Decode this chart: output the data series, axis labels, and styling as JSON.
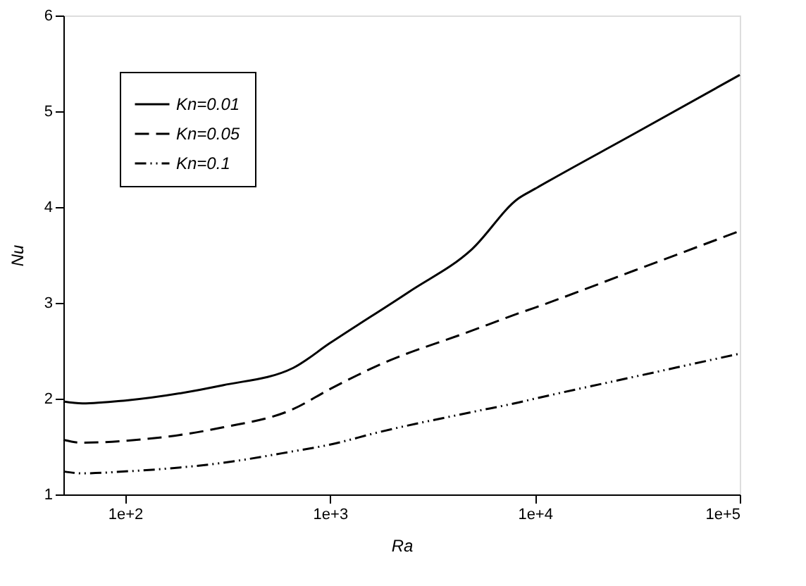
{
  "chart_data": {
    "type": "line",
    "xlabel": "Ra",
    "ylabel": "Nu",
    "log": "x",
    "xlim": [
      50,
      100000
    ],
    "xticks": [
      {
        "value": 100,
        "label": "1e+2"
      },
      {
        "value": 1000,
        "label": "1e+3"
      },
      {
        "value": 10000,
        "label": "1e+4"
      },
      {
        "value": 100000,
        "label": "1e+5"
      }
    ],
    "ylim": [
      1,
      6
    ],
    "yticks": [
      1,
      2,
      3,
      4,
      5,
      6
    ],
    "grid": false,
    "legend": "top left",
    "marker": "none",
    "x": [
      50,
      62,
      100,
      300,
      660,
      1000,
      2450,
      4930,
      8310,
      10000,
      30800,
      100000
    ],
    "series": [
      {
        "name": "Kn=0.01",
        "color": "#000000",
        "line_style": "solid",
        "values": [
          1.97,
          1.95,
          1.98,
          2.14,
          2.32,
          2.58,
          3.12,
          3.56,
          4.09,
          4.19,
          4.77,
          5.38
        ]
      },
      {
        "name": "Kn=0.05",
        "color": "#000000",
        "line_style": "dashed",
        "x": [
          50,
          62,
          100,
          300,
          660,
          1000,
          1730,
          4930,
          8310,
          10000,
          30800,
          100000
        ],
        "values": [
          1.57,
          1.54,
          1.56,
          1.7,
          1.89,
          2.1,
          2.35,
          2.71,
          2.89,
          2.95,
          3.34,
          3.75
        ]
      },
      {
        "name": "Kn=0.1",
        "color": "#000000",
        "line_style": "dashdotdot",
        "x": [
          50,
          62,
          100,
          300,
          660,
          1000,
          1730,
          4930,
          8310,
          10000,
          30800,
          100000
        ],
        "values": [
          1.24,
          1.22,
          1.24,
          1.33,
          1.45,
          1.52,
          1.65,
          1.86,
          1.96,
          2.0,
          2.23,
          2.47
        ]
      }
    ]
  }
}
